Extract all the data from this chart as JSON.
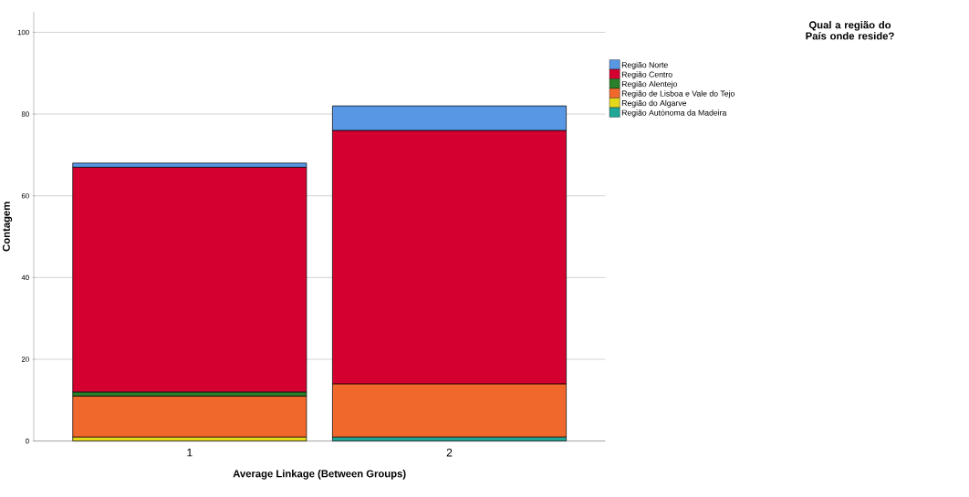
{
  "chart_data": {
    "type": "bar",
    "stacked": true,
    "xlabel": "Average Linkage (Between Groups)",
    "ylabel": "Contagem",
    "legend_title": "Qual a região do País onde reside?",
    "legend": "top right",
    "grid": "y",
    "categories": [
      "1",
      "2"
    ],
    "ylim": [
      0,
      105
    ],
    "yticks": [
      0,
      20,
      40,
      60,
      80,
      100
    ],
    "series": [
      {
        "name": "Região Autónoma da Madeira",
        "color": "#1fa898",
        "values": [
          null,
          1
        ]
      },
      {
        "name": "Região do Algarve",
        "color": "#e3d81a",
        "values": [
          1,
          null
        ]
      },
      {
        "name": "Região de Lisboa e Vale do Tejo",
        "color": "#f0682c",
        "values": [
          10,
          13
        ]
      },
      {
        "name": "Região Alentejo",
        "color": "#2a7f2a",
        "values": [
          1,
          null
        ]
      },
      {
        "name": "Região Centro",
        "color": "#d4002f",
        "values": [
          55,
          62
        ]
      },
      {
        "name": "Região Norte",
        "color": "#5897e3",
        "values": [
          1,
          6
        ]
      }
    ]
  }
}
